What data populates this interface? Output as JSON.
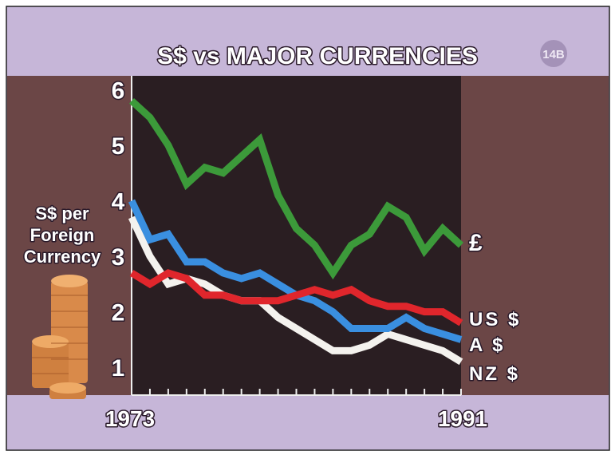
{
  "chart_data": {
    "type": "line",
    "title": "S$ vs MAJOR CURRENCIES",
    "badge": "14B",
    "y_label": [
      "S$ per",
      "Foreign",
      "Currency"
    ],
    "x": [
      1973,
      1974,
      1975,
      1976,
      1977,
      1978,
      1979,
      1980,
      1981,
      1982,
      1983,
      1984,
      1985,
      1986,
      1987,
      1988,
      1989,
      1990,
      1991
    ],
    "xlim": [
      1973,
      1991
    ],
    "xticks": [
      1973,
      1991
    ],
    "ylim": [
      0.5,
      6.25
    ],
    "yticks": [
      1,
      2,
      3,
      4,
      5,
      6
    ],
    "series": [
      {
        "name": "£",
        "color": "#3c9a3a",
        "values": [
          5.8,
          5.5,
          5.0,
          4.3,
          4.6,
          4.5,
          4.8,
          5.1,
          4.1,
          3.5,
          3.2,
          2.7,
          3.2,
          3.4,
          3.9,
          3.7,
          3.1,
          3.5,
          3.2
        ]
      },
      {
        "name": "US $",
        "color": "#e0262c",
        "values": [
          2.7,
          2.5,
          2.7,
          2.6,
          2.3,
          2.3,
          2.2,
          2.2,
          2.2,
          2.3,
          2.4,
          2.3,
          2.4,
          2.2,
          2.1,
          2.1,
          2.0,
          2.0,
          1.8
        ]
      },
      {
        "name": "A $",
        "color": "#3a8fe0",
        "values": [
          4.0,
          3.3,
          3.4,
          2.9,
          2.9,
          2.7,
          2.6,
          2.7,
          2.5,
          2.3,
          2.2,
          2.0,
          1.7,
          1.7,
          1.7,
          1.9,
          1.7,
          1.6,
          1.5
        ]
      },
      {
        "name": "NZ $",
        "color": "#f4f2ee",
        "values": [
          3.7,
          3.0,
          2.5,
          2.6,
          2.5,
          2.3,
          2.2,
          2.2,
          1.9,
          1.7,
          1.5,
          1.3,
          1.3,
          1.4,
          1.6,
          1.5,
          1.4,
          1.3,
          1.1
        ]
      }
    ]
  }
}
